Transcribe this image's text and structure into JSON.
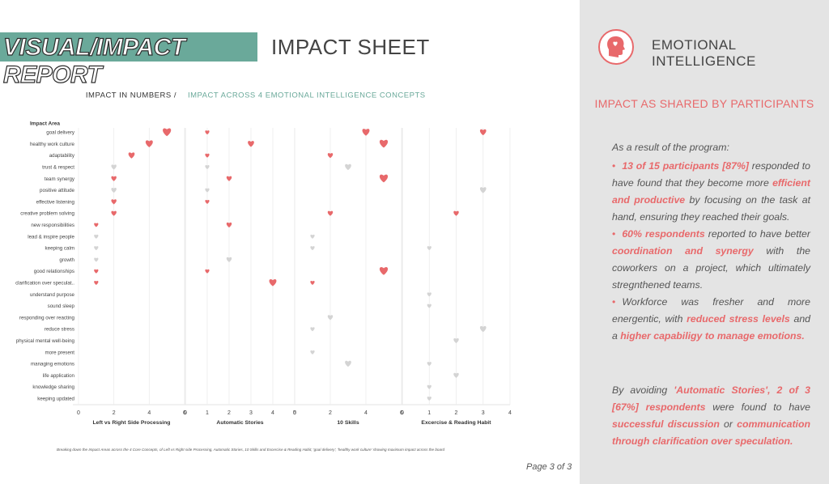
{
  "header": {
    "title": "VISUAL/IMPACT REPORT",
    "subtitle": "IMPACT SHEET"
  },
  "chart_data": {
    "type": "dot",
    "title": "IMPACT IN NUMBERS /",
    "subtitle": "IMPACT ACROSS 4 EMOTIONAL INTELLIGENCE CONCEPTS",
    "y_label": "Impact Area",
    "categories": [
      "goal delivery",
      "healthy work culture",
      "adaptability",
      "trust & respect",
      "team synergy",
      "positive attitude",
      "effective listening",
      "creative problem solving",
      "new responsibilities",
      "lead & inspire people",
      "keeping calm",
      "growth",
      "good relationships",
      "clarification over speculat..",
      "understand purpose",
      "sound sleep",
      "responding over reacting",
      "reduce stress",
      "physical mental well-being",
      "more present",
      "managing emotions",
      "life application",
      "knowledge sharing",
      "keeping updated"
    ],
    "grid": true,
    "series": [
      {
        "name": "Left vs Right Side Processing",
        "xlim": [
          0,
          6
        ],
        "xticks": [
          0,
          2,
          4,
          6
        ],
        "values": [
          5,
          4,
          3,
          2,
          2,
          2,
          2,
          2,
          1,
          1,
          1,
          1,
          1,
          1,
          null,
          null,
          null,
          null,
          null,
          null,
          null,
          null,
          null,
          null
        ],
        "colors": [
          "#e8696b",
          "#e8696b",
          "#e8696b",
          "#d4d4d4",
          "#e8696b",
          "#d4d4d4",
          "#e8696b",
          "#e8696b",
          "#e8696b",
          "#d4d4d4",
          "#d4d4d4",
          "#d4d4d4",
          "#e8696b",
          "#e8696b",
          null,
          null,
          null,
          null,
          null,
          null,
          null,
          null,
          null,
          null
        ]
      },
      {
        "name": "Automatic Stories",
        "xlim": [
          0,
          5
        ],
        "xticks": [
          0,
          1,
          2,
          3,
          4,
          5
        ],
        "values": [
          1,
          3,
          1,
          1,
          2,
          1,
          1,
          null,
          2,
          null,
          null,
          2,
          1,
          4,
          null,
          null,
          null,
          null,
          null,
          null,
          null,
          null,
          null,
          null
        ],
        "colors": [
          "#e8696b",
          "#e8696b",
          "#e8696b",
          "#d4d4d4",
          "#e8696b",
          "#d4d4d4",
          "#e8696b",
          null,
          "#e8696b",
          null,
          null,
          "#d4d4d4",
          "#e8696b",
          "#e8696b",
          null,
          null,
          null,
          null,
          null,
          null,
          null,
          null,
          null,
          null
        ]
      },
      {
        "name": "10 Skills",
        "xlim": [
          0,
          6
        ],
        "xticks": [
          0,
          2,
          4,
          6
        ],
        "values": [
          4,
          5,
          2,
          3,
          5,
          null,
          null,
          2,
          null,
          1,
          1,
          null,
          5,
          1,
          null,
          null,
          2,
          1,
          null,
          1,
          3,
          null,
          null,
          null
        ],
        "colors": [
          "#e8696b",
          "#e8696b",
          "#e8696b",
          "#d4d4d4",
          "#e8696b",
          null,
          null,
          "#e8696b",
          null,
          "#d4d4d4",
          "#d4d4d4",
          null,
          "#e8696b",
          "#e8696b",
          null,
          null,
          "#d4d4d4",
          "#d4d4d4",
          null,
          "#d4d4d4",
          "#d4d4d4",
          null,
          null,
          null
        ]
      },
      {
        "name": "Excercise & Reading Habit",
        "xlim": [
          0,
          4
        ],
        "xticks": [
          0,
          1,
          2,
          3,
          4
        ],
        "values": [
          3,
          null,
          null,
          null,
          null,
          3,
          null,
          2,
          null,
          null,
          1,
          null,
          null,
          null,
          1,
          1,
          null,
          3,
          2,
          null,
          1,
          2,
          1,
          1
        ],
        "colors": [
          "#e8696b",
          null,
          null,
          null,
          null,
          "#d4d4d4",
          null,
          "#e8696b",
          null,
          null,
          "#d4d4d4",
          null,
          null,
          null,
          "#d4d4d4",
          "#d4d4d4",
          null,
          "#d4d4d4",
          "#d4d4d4",
          null,
          "#d4d4d4",
          "#d4d4d4",
          "#d4d4d4",
          "#d4d4d4"
        ]
      }
    ],
    "note": "Breaking down the Impact Areas across the 4 Core Concepts, of Left vs Right side Processing, Automatic Stories, 10 Skills and Excercise & Reading Habit; 'goal delivery', 'healthy work culture' showing maximum impact across the board"
  },
  "side": {
    "title": "EMOTIONAL INTELLIGENCE",
    "heading": "IMPACT AS SHARED BY PARTICIPANTS",
    "intro": "As a result of the program:",
    "bullets": [
      [
        {
          "text": "13 of 15 participants [87%]",
          "bold": true
        },
        {
          "text": " responded to have found that they become more ",
          "bold": false
        },
        {
          "text": "efficient and productive",
          "bold": true
        },
        {
          "text": " by focusing on the task at hand, ensuring they reached their goals.",
          "bold": false
        }
      ],
      [
        {
          "text": "60% respondents",
          "bold": true
        },
        {
          "text": " reported to have better ",
          "bold": false
        },
        {
          "text": "coordination and synergy",
          "bold": true
        },
        {
          "text": " with the coworkers on a project, which ultimately stregnthened teams.",
          "bold": false
        }
      ],
      [
        {
          "text": "Workforce was fresher and more energentic, with ",
          "bold": false
        },
        {
          "text": "reduced stress levels",
          "bold": true
        },
        {
          "text": " and a ",
          "bold": false
        },
        {
          "text": "higher capabiligy to manage emotions.",
          "bold": true
        }
      ]
    ],
    "conclusion": [
      {
        "text": "By avoiding ",
        "bold": false
      },
      {
        "text": "'Automatic Stories', 2 of 3 [67%] respondents",
        "bold": true
      },
      {
        "text": " were found to have ",
        "bold": false
      },
      {
        "text": "successful discussion",
        "bold": true
      },
      {
        "text": " or ",
        "bold": false
      },
      {
        "text": "communication through clarification over speculation.",
        "bold": true
      }
    ]
  },
  "footer": {
    "page": "Page 3 of 3"
  }
}
